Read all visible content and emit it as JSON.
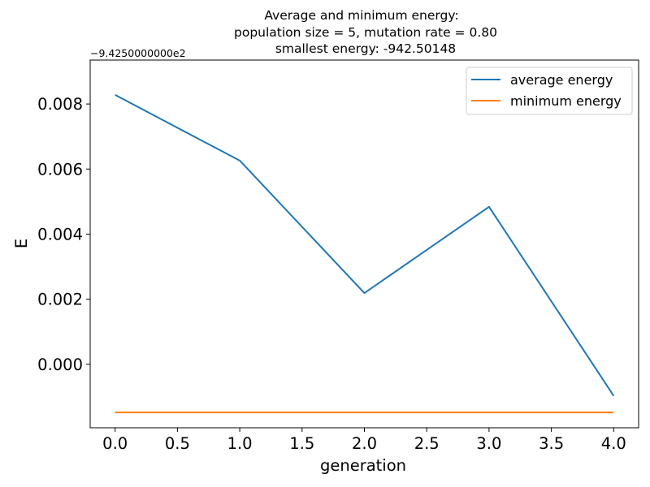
{
  "chart_data": {
    "type": "line",
    "title_lines": [
      "Average and minimum energy:",
      "population size = 5, mutation rate = 0.80",
      "smallest energy: -942.50148"
    ],
    "xlabel": "generation",
    "ylabel": "E",
    "y_offset_label": "−9.4250000000e2",
    "xlim": [
      -0.2,
      4.2
    ],
    "ylim": [
      -0.00195,
      0.00935
    ],
    "xticks": [
      0.0,
      0.5,
      1.0,
      1.5,
      2.0,
      2.5,
      3.0,
      3.5,
      4.0
    ],
    "xtick_labels": [
      "0.0",
      "0.5",
      "1.0",
      "1.5",
      "2.0",
      "2.5",
      "3.0",
      "3.5",
      "4.0"
    ],
    "yticks": [
      0.0,
      0.002,
      0.004,
      0.006,
      0.008
    ],
    "ytick_labels": [
      "0.000",
      "0.002",
      "0.004",
      "0.006",
      "0.008"
    ],
    "x": [
      0,
      1,
      2,
      3,
      4
    ],
    "series": [
      {
        "name": "average energy",
        "color": "#1f77b4",
        "values": [
          0.00828,
          0.00626,
          0.00219,
          0.00484,
          -0.00097
        ]
      },
      {
        "name": "minimum energy",
        "color": "#ff7f0e",
        "values": [
          -0.00148,
          -0.00148,
          -0.00148,
          -0.00148,
          -0.00148
        ]
      }
    ],
    "legend_position": "top-right",
    "grid": false
  }
}
